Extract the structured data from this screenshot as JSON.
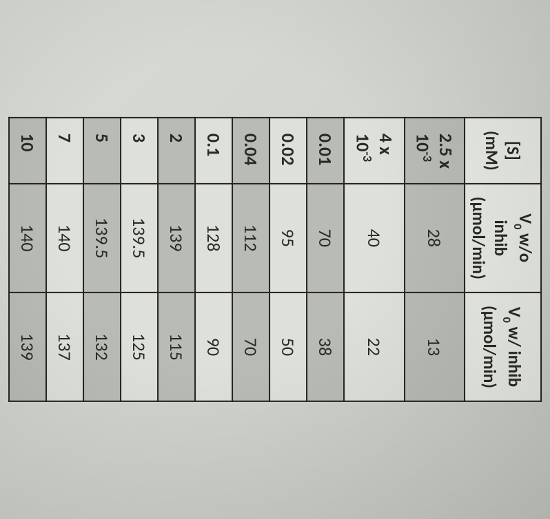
{
  "table": {
    "type": "table",
    "background_colors": {
      "header": "#e8eae4",
      "row_odd": "#b9bcb5",
      "row_even": "#dee0da"
    },
    "border_color": "#25231f",
    "text_color": "#2a2a28",
    "font_family": "Calibri",
    "header_fontsize": 25,
    "cell_fontsize": 26,
    "columns": [
      {
        "line1": "[S]",
        "line2": "(mM)"
      },
      {
        "line1_pre": "V",
        "line1_sub": "0",
        "line1_post": " w/o inhib",
        "line2": "(µmol/min)"
      },
      {
        "line1_pre": "V",
        "line1_sub": "0",
        "line1_post": " w/ inhib",
        "line2": "(µmol/min)"
      }
    ],
    "rows": [
      {
        "s_pre": "2.5 x 10",
        "s_sup": "-3",
        "s_plain": "",
        "v_wo": "28",
        "v_w": "13"
      },
      {
        "s_pre": "4 x 10",
        "s_sup": "-3",
        "s_plain": "",
        "v_wo": "40",
        "v_w": "22"
      },
      {
        "s_pre": "",
        "s_sup": "",
        "s_plain": "0.01",
        "v_wo": "70",
        "v_w": "38"
      },
      {
        "s_pre": "",
        "s_sup": "",
        "s_plain": "0.02",
        "v_wo": "95",
        "v_w": "50"
      },
      {
        "s_pre": "",
        "s_sup": "",
        "s_plain": "0.04",
        "v_wo": "112",
        "v_w": "70"
      },
      {
        "s_pre": "",
        "s_sup": "",
        "s_plain": "0.1",
        "v_wo": "128",
        "v_w": "90"
      },
      {
        "s_pre": "",
        "s_sup": "",
        "s_plain": "2",
        "v_wo": "139",
        "v_w": "115"
      },
      {
        "s_pre": "",
        "s_sup": "",
        "s_plain": "3",
        "v_wo": "139.5",
        "v_w": "125"
      },
      {
        "s_pre": "",
        "s_sup": "",
        "s_plain": "5",
        "v_wo": "139.5",
        "v_w": "132"
      },
      {
        "s_pre": "",
        "s_sup": "",
        "s_plain": "7",
        "v_wo": "140",
        "v_w": "137"
      },
      {
        "s_pre": "",
        "s_sup": "",
        "s_plain": "10",
        "v_wo": "140",
        "v_w": "139"
      }
    ]
  }
}
